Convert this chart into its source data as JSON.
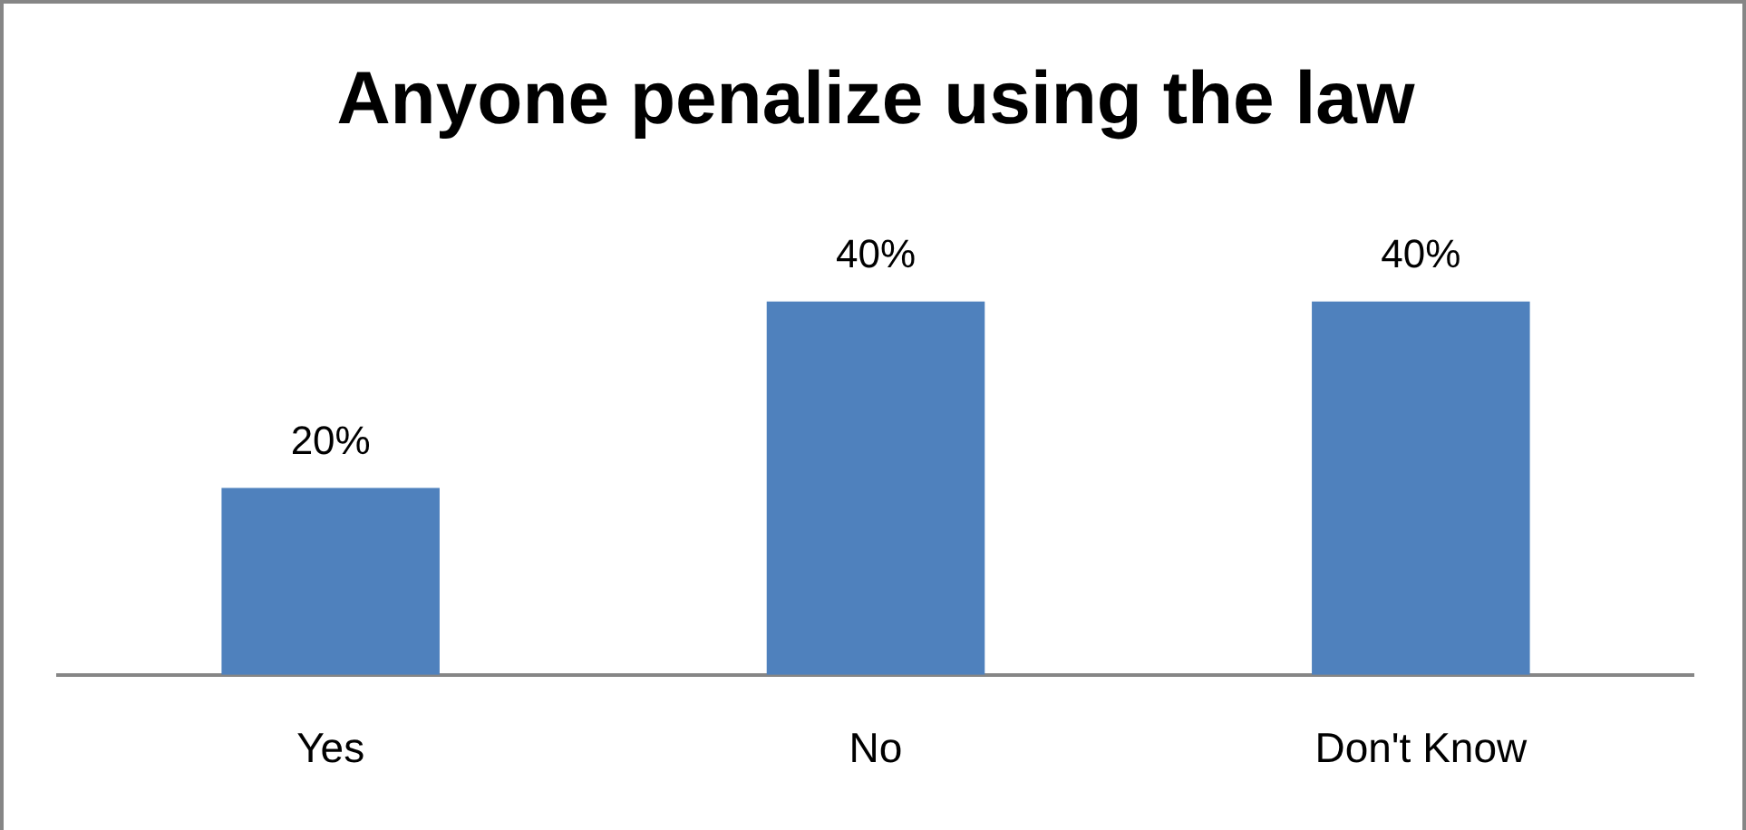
{
  "chart_data": {
    "type": "bar",
    "title": "Anyone penalize using the law",
    "categories": [
      "Yes",
      "No",
      "Don't Know"
    ],
    "values": [
      20,
      40,
      40
    ],
    "color": "#4f81bd",
    "value_labels": [
      "20%",
      "40%",
      "40%"
    ],
    "tick_labels": "x",
    "grid": false,
    "legend": false
  }
}
